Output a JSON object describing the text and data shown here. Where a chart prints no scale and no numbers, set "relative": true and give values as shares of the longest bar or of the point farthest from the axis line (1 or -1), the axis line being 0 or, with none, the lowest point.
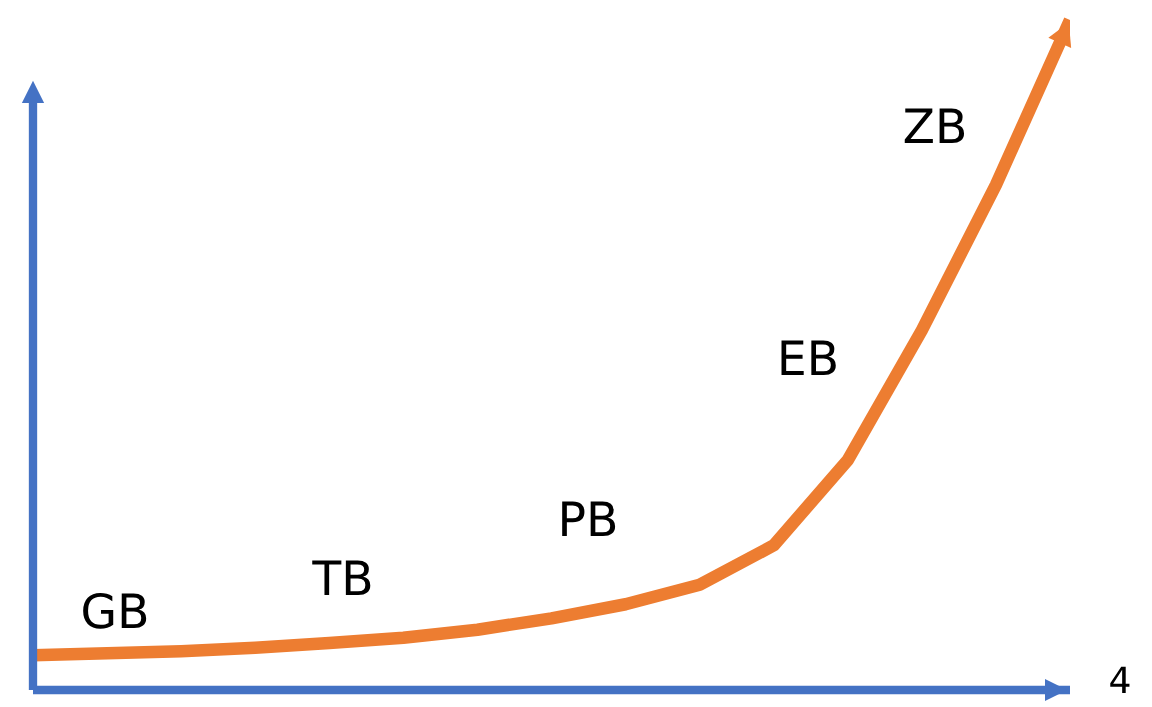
{
  "chart_data": {
    "type": "line",
    "relative": true,
    "xlabel": "4",
    "categories": [
      null,
      null,
      null,
      null,
      null,
      null,
      null,
      null,
      null,
      null,
      null,
      null,
      null,
      null,
      null
    ],
    "series": [
      {
        "color": "#ed7d31",
        "values": [
          0.052,
          0.055,
          0.058,
          0.063,
          0.07,
          0.078,
          0.09,
          0.107,
          0.128,
          0.157,
          0.216,
          0.343,
          0.537,
          0.754,
          1.0
        ]
      }
    ],
    "annotations": [
      "GB",
      "TB",
      "PB",
      "EB",
      "ZB"
    ],
    "legend": false,
    "marker": "none",
    "line_style": "solid"
  }
}
